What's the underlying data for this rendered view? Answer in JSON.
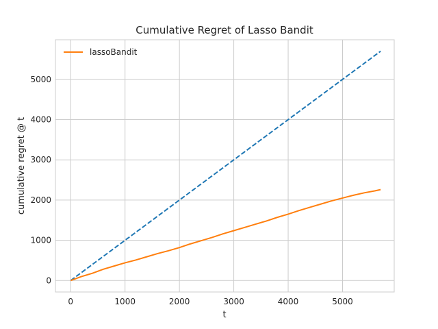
{
  "chart_data": {
    "type": "line",
    "title": "Cumulative Regret of Lasso Bandit",
    "xlabel": "t",
    "ylabel": "cumulative regret @ t",
    "xlim": [
      -280,
      5950
    ],
    "ylim": [
      -285,
      5985
    ],
    "xticks": [
      0,
      1000,
      2000,
      3000,
      4000,
      5000
    ],
    "yticks": [
      0,
      1000,
      2000,
      3000,
      4000,
      5000
    ],
    "grid": true,
    "legend_position": "top-left",
    "series": [
      {
        "name": "lassoBandit",
        "color": "#ff7f0e",
        "style": "solid",
        "x": [
          0,
          200,
          400,
          600,
          800,
          1000,
          1200,
          1400,
          1600,
          1800,
          2000,
          2200,
          2400,
          2600,
          2800,
          3000,
          3200,
          3400,
          3600,
          3800,
          4000,
          4200,
          4400,
          4600,
          4800,
          5000,
          5200,
          5400,
          5600,
          5700
        ],
        "y": [
          0,
          100,
          180,
          280,
          360,
          440,
          510,
          590,
          670,
          740,
          820,
          910,
          990,
          1070,
          1160,
          1240,
          1320,
          1400,
          1480,
          1570,
          1650,
          1740,
          1820,
          1900,
          1980,
          2050,
          2120,
          2180,
          2230,
          2260
        ]
      },
      {
        "name": "",
        "color": "#1f77b4",
        "style": "dashed",
        "x": [
          0,
          5700
        ],
        "y": [
          0,
          5700
        ]
      }
    ]
  }
}
